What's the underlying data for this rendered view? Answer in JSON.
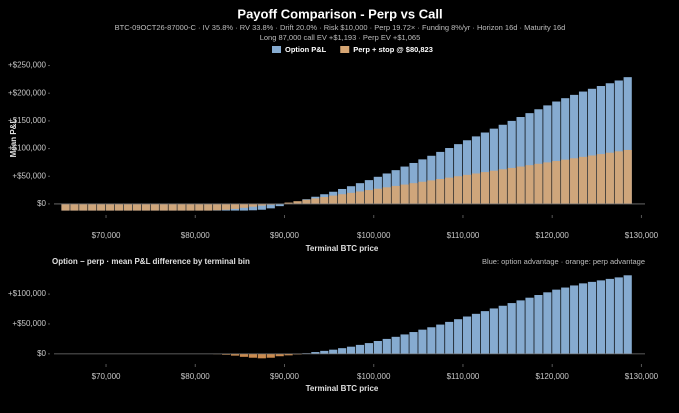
{
  "chart_data": [
    {
      "type": "bar",
      "title": "Payoff Comparison - Perp vs Call",
      "subtitle_lines": [
        "BTC-09OCT26-87000-C · IV 35.8% · RV 33.8% · Drift 20.0% · Risk $10,000 · Perp 19.72× · Funding 8%/yr · Horizon 16d · Maturity 16d",
        "Long 87,000 call EV +$1,193 · Perp EV +$1,065"
      ],
      "x_label": "Terminal BTC price",
      "y_label": "Mean P&L",
      "x": [
        65500,
        66500,
        67500,
        68500,
        69500,
        70500,
        71500,
        72500,
        73500,
        74500,
        75500,
        76500,
        77500,
        78500,
        79500,
        80500,
        81500,
        82500,
        83500,
        84500,
        85500,
        86500,
        87500,
        88500,
        89500,
        90500,
        91500,
        92500,
        93500,
        94500,
        95500,
        96500,
        97500,
        98500,
        99500,
        100500,
        101500,
        102500,
        103500,
        104500,
        105500,
        106500,
        107500,
        108500,
        109500,
        110500,
        111500,
        112500,
        113500,
        114500,
        115500,
        116500,
        117500,
        118500,
        119500,
        120500,
        121500,
        122500,
        123500,
        124500,
        125500,
        126500,
        127500,
        128500
      ],
      "bin_width": 1000,
      "series": [
        {
          "name": "Option P&L",
          "color": "#86abd0",
          "values": [
            -12000,
            -12000,
            -12000,
            -12000,
            -12000,
            -12000,
            -12000,
            -12000,
            -12000,
            -12000,
            -12000,
            -12000,
            -12000,
            -12000,
            -12000,
            -12000,
            -12000,
            -12000,
            -12000,
            -12000,
            -12000,
            -11500,
            -10500,
            -8000,
            -4000,
            0,
            4000,
            8500,
            13000,
            17500,
            22000,
            27000,
            32000,
            37500,
            43000,
            49000,
            55000,
            61000,
            67500,
            74000,
            80500,
            87000,
            94000,
            101000,
            108000,
            115000,
            122000,
            129000,
            136000,
            143000,
            150000,
            157000,
            164000,
            171000,
            178000,
            185000,
            191000,
            197000,
            203000,
            208000,
            213000,
            218000,
            223000,
            229000
          ]
        },
        {
          "name": "Perp + stop @ $80,823",
          "color": "#d6a573",
          "values": [
            -12000,
            -12000,
            -12000,
            -12000,
            -12000,
            -12000,
            -12000,
            -12000,
            -12000,
            -12000,
            -12000,
            -12000,
            -12000,
            -12000,
            -12000,
            -12000,
            -12000,
            -11500,
            -10500,
            -9000,
            -7000,
            -5000,
            -3000,
            -1500,
            0,
            2500,
            5000,
            7500,
            10000,
            12500,
            15000,
            17500,
            20000,
            22500,
            25000,
            27500,
            30000,
            32500,
            35000,
            37500,
            40000,
            42500,
            45000,
            47500,
            50000,
            52500,
            55000,
            57500,
            60000,
            62500,
            65000,
            67500,
            70000,
            72500,
            75000,
            77500,
            80000,
            82500,
            85000,
            87500,
            90000,
            92500,
            95000,
            97500
          ]
        }
      ],
      "xlim": [
        62600,
        130400
      ],
      "xticks": [
        {
          "value": 70000,
          "label": "$70,000"
        },
        {
          "value": 80000,
          "label": "$80,000"
        },
        {
          "value": 90000,
          "label": "$90,000"
        },
        {
          "value": 100000,
          "label": "$100,000"
        },
        {
          "value": 110000,
          "label": "$110,000"
        },
        {
          "value": 120000,
          "label": "$120,000"
        },
        {
          "value": 130000,
          "label": "$130,000"
        }
      ],
      "ylim": [
        -20000,
        260000
      ],
      "yticks": [
        {
          "value": 0,
          "label": "$0"
        },
        {
          "value": 50000,
          "label": "+$50,000"
        },
        {
          "value": 100000,
          "label": "+$100,000"
        },
        {
          "value": 150000,
          "label": "+$150,000"
        },
        {
          "value": 200000,
          "label": "+$200,000"
        },
        {
          "value": 250000,
          "label": "+$250,000"
        }
      ]
    },
    {
      "type": "diffbar",
      "title": "Option − perp · mean P&L difference by terminal bin",
      "annotation": "Blue: option advantage · orange: perp advantage",
      "x_label": "Terminal BTC price",
      "x": [
        65500,
        66500,
        67500,
        68500,
        69500,
        70500,
        71500,
        72500,
        73500,
        74500,
        75500,
        76500,
        77500,
        78500,
        79500,
        80500,
        81500,
        82500,
        83500,
        84500,
        85500,
        86500,
        87500,
        88500,
        89500,
        90500,
        91500,
        92500,
        93500,
        94500,
        95500,
        96500,
        97500,
        98500,
        99500,
        100500,
        101500,
        102500,
        103500,
        104500,
        105500,
        106500,
        107500,
        108500,
        109500,
        110500,
        111500,
        112500,
        113500,
        114500,
        115500,
        116500,
        117500,
        118500,
        119500,
        120500,
        121500,
        122500,
        123500,
        124500,
        125500,
        126500,
        127500,
        128500
      ],
      "bin_width": 1000,
      "values": [
        0,
        0,
        0,
        0,
        0,
        0,
        0,
        0,
        0,
        0,
        0,
        0,
        0,
        0,
        0,
        0,
        0,
        -500,
        -1500,
        -3000,
        -5000,
        -6500,
        -7500,
        -6500,
        -4000,
        -2500,
        -1000,
        1000,
        3000,
        5000,
        7000,
        9500,
        12000,
        15000,
        18000,
        21500,
        25000,
        28500,
        32500,
        36500,
        40500,
        44500,
        49000,
        53500,
        58000,
        62500,
        67000,
        71500,
        76000,
        80500,
        85000,
        89500,
        94000,
        98500,
        103000,
        107500,
        111000,
        114500,
        118000,
        120500,
        123000,
        125500,
        128000,
        131500
      ],
      "positive_color": "#86abd0",
      "negative_color": "#c98a4f",
      "xlim": [
        62600,
        130400
      ],
      "xticks": [
        {
          "value": 70000,
          "label": "$70,000"
        },
        {
          "value": 80000,
          "label": "$80,000"
        },
        {
          "value": 90000,
          "label": "$90,000"
        },
        {
          "value": 100000,
          "label": "$100,000"
        },
        {
          "value": 110000,
          "label": "$110,000"
        },
        {
          "value": 120000,
          "label": "$120,000"
        },
        {
          "value": 130000,
          "label": "$130,000"
        }
      ],
      "ylim": [
        -17000,
        132000
      ],
      "yticks": [
        {
          "value": 0,
          "label": "$0"
        },
        {
          "value": 50000,
          "label": "+$50,000"
        },
        {
          "value": 100000,
          "label": "+$100,000"
        }
      ]
    }
  ]
}
